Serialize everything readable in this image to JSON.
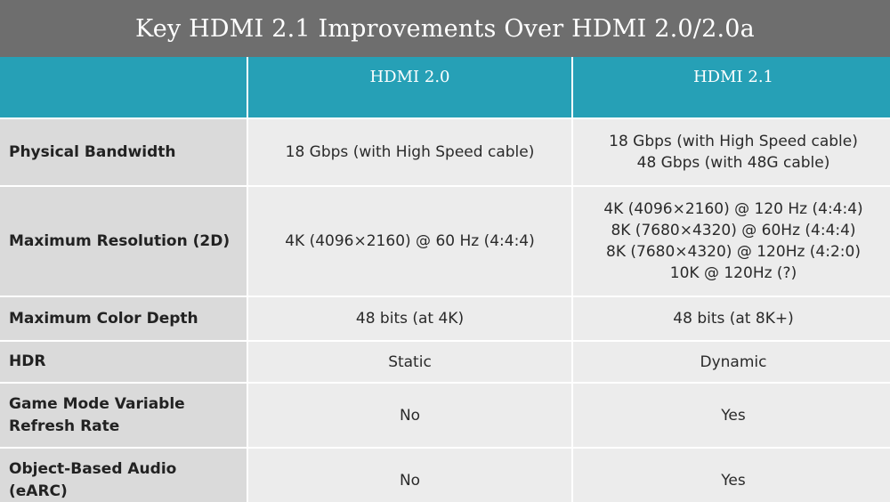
{
  "title": "Key HDMI 2.1 Improvements Over HDMI 2.0/2.0a",
  "columns": [
    "HDMI 2.0",
    "HDMI 2.1"
  ],
  "rows": [
    {
      "label": "Physical Bandwidth",
      "v20": [
        "18 Gbps (with High Speed cable)"
      ],
      "v21": [
        "18 Gbps (with High Speed cable)",
        "48 Gbps (with 48G cable)"
      ]
    },
    {
      "label": "Maximum Resolution (2D)",
      "v20": [
        "4K (4096×2160) @ 60 Hz (4:4:4)"
      ],
      "v21": [
        "4K (4096×2160) @ 120 Hz (4:4:4)",
        "8K (7680×4320) @ 60Hz (4:4:4)",
        "8K (7680×4320) @ 120Hz (4:2:0)",
        "10K @ 120Hz (?)"
      ]
    },
    {
      "label": "Maximum Color Depth",
      "v20": [
        "48 bits (at 4K)"
      ],
      "v21": [
        "48 bits (at 8K+)"
      ]
    },
    {
      "label": "HDR",
      "v20": [
        "Static"
      ],
      "v21": [
        "Dynamic"
      ]
    },
    {
      "label": [
        "Game Mode Variable",
        "Refresh Rate"
      ],
      "v20": [
        "No"
      ],
      "v21": [
        "Yes"
      ]
    },
    {
      "label": [
        "Object-Based Audio",
        "(eARC)"
      ],
      "v20": [
        "No"
      ],
      "v21": [
        "Yes"
      ]
    }
  ]
}
